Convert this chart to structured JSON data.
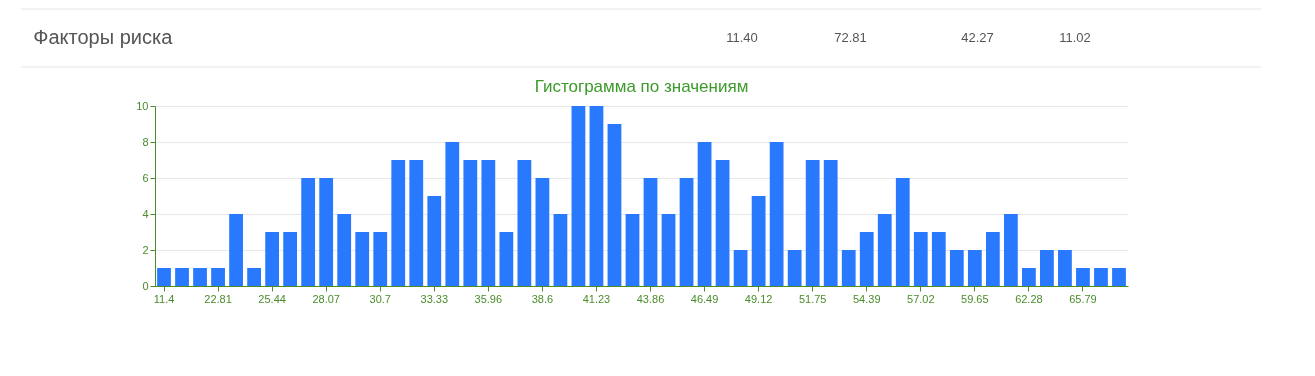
{
  "chart_data": {
    "type": "bar",
    "title": "Гистограмма по значениям",
    "annotations": [
      "Факторы риска",
      "11.40",
      "72.81",
      "42.27",
      "11.02"
    ],
    "categories": [
      "11.4",
      null,
      null,
      "22.81",
      null,
      null,
      "25.44",
      null,
      null,
      "28.07",
      null,
      null,
      "30.7",
      null,
      null,
      "33.33",
      null,
      null,
      "35.96",
      null,
      null,
      "38.6",
      null,
      null,
      "41.23",
      null,
      null,
      "43.86",
      null,
      null,
      "46.49",
      null,
      null,
      "49.12",
      null,
      null,
      "51.75",
      null,
      null,
      "54.39",
      null,
      null,
      "57.02",
      null,
      null,
      "59.65",
      null,
      null,
      "62.28",
      null,
      null,
      "65.79",
      null,
      null
    ],
    "values": [
      1,
      1,
      1,
      1,
      4,
      1,
      3,
      3,
      6,
      6,
      4,
      3,
      3,
      7,
      7,
      5,
      8,
      7,
      7,
      3,
      7,
      6,
      4,
      10,
      10,
      9,
      4,
      6,
      4,
      6,
      8,
      7,
      2,
      5,
      8,
      2,
      7,
      7,
      2,
      3,
      4,
      6,
      3,
      3,
      2,
      2,
      3,
      4,
      1,
      2,
      2,
      1,
      1,
      1
    ],
    "color": "#2979ff",
    "ylim": [
      0,
      10
    ],
    "yticks": [
      0,
      2,
      4,
      6,
      8,
      10
    ],
    "grid": "y"
  }
}
